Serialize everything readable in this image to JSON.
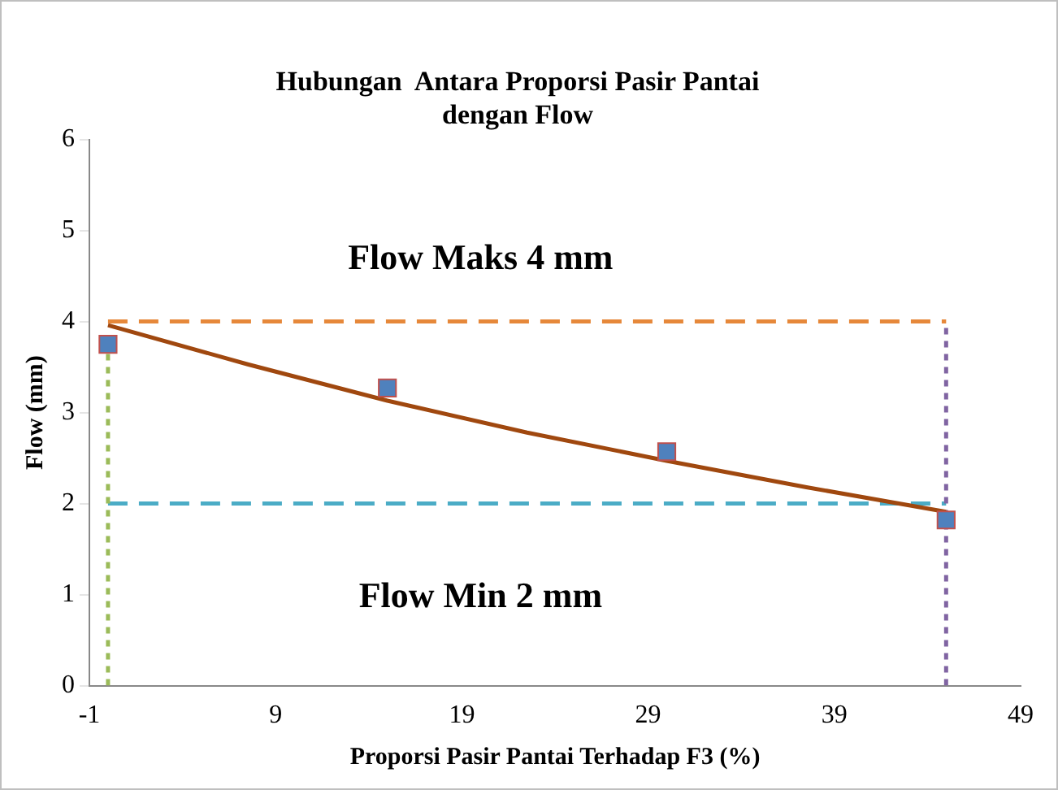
{
  "chart_data": {
    "type": "scatter",
    "title": "Hubungan  Antara Proporsi Pasir Pantai\ndengan Flow",
    "xlabel": "Proporsi Pasir Pantai Terhadap F3 (%)",
    "ylabel": "Flow (mm)",
    "xlim": [
      -1,
      49
    ],
    "xticks": [
      -1,
      9,
      19,
      29,
      39,
      49
    ],
    "ylim": [
      0,
      6
    ],
    "yticks": [
      0,
      1,
      2,
      3,
      4,
      5,
      6
    ],
    "series": [
      {
        "type": "line",
        "marker": "none",
        "color": "#e6883a",
        "line_style": "dashed",
        "x": [
          0,
          45
        ],
        "values": [
          4,
          4
        ]
      },
      {
        "type": "line",
        "marker": "none",
        "color": "#4bacc6",
        "line_style": "dashed",
        "x": [
          0,
          45
        ],
        "values": [
          2,
          2
        ]
      },
      {
        "type": "line",
        "marker": "none",
        "color": "#9bbb59",
        "line_style": "dotted",
        "x": [
          0,
          0
        ],
        "values": [
          0,
          3.75
        ]
      },
      {
        "type": "line",
        "marker": "none",
        "color": "#8064a2",
        "line_style": "dotted",
        "x": [
          45,
          45
        ],
        "values": [
          0,
          4
        ]
      },
      {
        "type": "line",
        "marker": "none",
        "color": "#a0480f",
        "line_style": "solid",
        "x": [
          0,
          7.5,
          15,
          22.5,
          30,
          37.5,
          45
        ],
        "values": [
          3.96,
          3.53,
          3.13,
          2.78,
          2.47,
          2.18,
          1.91
        ]
      },
      {
        "marker": "square",
        "color": "#4f81bd",
        "x": [
          0,
          15,
          30,
          45
        ],
        "values": [
          3.75,
          3.27,
          2.57,
          1.82
        ]
      }
    ],
    "annotations": [
      "Flow Maks 4 mm",
      "Flow Min 2 mm"
    ]
  }
}
